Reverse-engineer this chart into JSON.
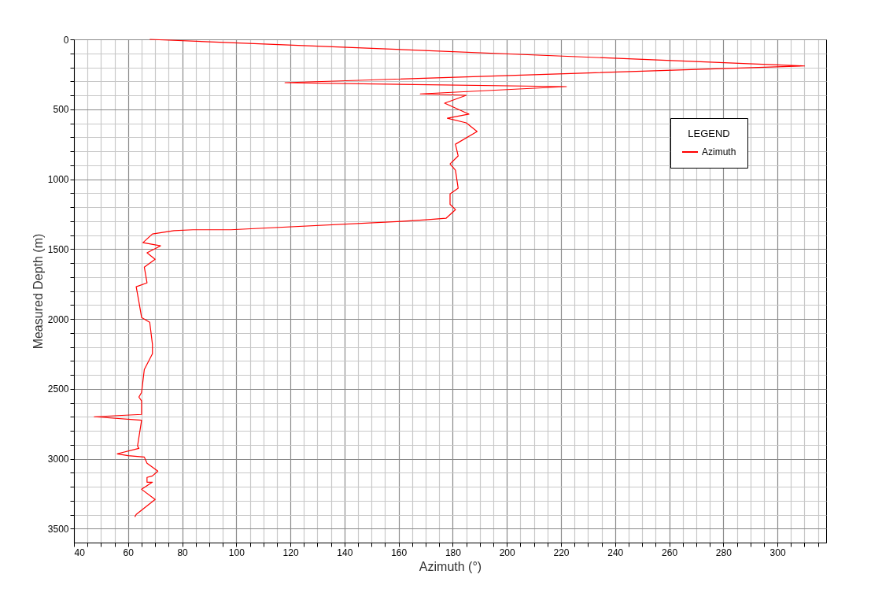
{
  "chart_data": {
    "type": "line",
    "xlabel": "Azimuth (°)",
    "ylabel": "Measured Depth (m)",
    "legend_title": "LEGEND",
    "legend": "top right",
    "grid": true,
    "xlim": [
      40,
      318
    ],
    "ylim": [
      3600,
      0
    ],
    "xticks": [
      40,
      {
        "value": 45,
        "label": null
      },
      {
        "value": 50,
        "label": null
      },
      {
        "value": 55,
        "label": null
      },
      60,
      {
        "value": 65,
        "label": null
      },
      {
        "value": 70,
        "label": null
      },
      {
        "value": 75,
        "label": null
      },
      80,
      {
        "value": 85,
        "label": null
      },
      {
        "value": 90,
        "label": null
      },
      {
        "value": 95,
        "label": null
      },
      100,
      {
        "value": 105,
        "label": null
      },
      {
        "value": 110,
        "label": null
      },
      {
        "value": 115,
        "label": null
      },
      120,
      {
        "value": 125,
        "label": null
      },
      {
        "value": 130,
        "label": null
      },
      {
        "value": 135,
        "label": null
      },
      140,
      {
        "value": 145,
        "label": null
      },
      {
        "value": 150,
        "label": null
      },
      {
        "value": 155,
        "label": null
      },
      160,
      {
        "value": 165,
        "label": null
      },
      {
        "value": 170,
        "label": null
      },
      {
        "value": 175,
        "label": null
      },
      180,
      {
        "value": 185,
        "label": null
      },
      {
        "value": 190,
        "label": null
      },
      {
        "value": 195,
        "label": null
      },
      200,
      {
        "value": 205,
        "label": null
      },
      {
        "value": 210,
        "label": null
      },
      {
        "value": 215,
        "label": null
      },
      220,
      {
        "value": 225,
        "label": null
      },
      {
        "value": 230,
        "label": null
      },
      {
        "value": 235,
        "label": null
      },
      240,
      {
        "value": 245,
        "label": null
      },
      {
        "value": 250,
        "label": null
      },
      {
        "value": 255,
        "label": null
      },
      260,
      {
        "value": 265,
        "label": null
      },
      {
        "value": 270,
        "label": null
      },
      {
        "value": 275,
        "label": null
      },
      280,
      {
        "value": 285,
        "label": null
      },
      {
        "value": 290,
        "label": null
      },
      {
        "value": 295,
        "label": null
      },
      300,
      {
        "value": 305,
        "label": null
      },
      {
        "value": 310,
        "label": null
      },
      {
        "value": 315,
        "label": null
      }
    ],
    "yticks": [
      0,
      {
        "value": 100,
        "label": null
      },
      {
        "value": 200,
        "label": null
      },
      {
        "value": 300,
        "label": null
      },
      {
        "value": 400,
        "label": null
      },
      500,
      {
        "value": 600,
        "label": null
      },
      {
        "value": 700,
        "label": null
      },
      {
        "value": 800,
        "label": null
      },
      {
        "value": 900,
        "label": null
      },
      1000,
      {
        "value": 1100,
        "label": null
      },
      {
        "value": 1200,
        "label": null
      },
      {
        "value": 1300,
        "label": null
      },
      {
        "value": 1400,
        "label": null
      },
      1500,
      {
        "value": 1600,
        "label": null
      },
      {
        "value": 1700,
        "label": null
      },
      {
        "value": 1800,
        "label": null
      },
      {
        "value": 1900,
        "label": null
      },
      2000,
      {
        "value": 2100,
        "label": null
      },
      {
        "value": 2200,
        "label": null
      },
      {
        "value": 2300,
        "label": null
      },
      {
        "value": 2400,
        "label": null
      },
      2500,
      {
        "value": 2600,
        "label": null
      },
      {
        "value": 2700,
        "label": null
      },
      {
        "value": 2800,
        "label": null
      },
      {
        "value": 2900,
        "label": null
      },
      3000,
      {
        "value": 3100,
        "label": null
      },
      {
        "value": 3200,
        "label": null
      },
      {
        "value": 3300,
        "label": null
      },
      {
        "value": 3400,
        "label": null
      },
      3500
    ],
    "series": [
      {
        "name": "Azimuth",
        "color": "#ff0000",
        "x": [
          68,
          310,
          118,
          222,
          168,
          185,
          177,
          186,
          178,
          185,
          189,
          181,
          182,
          179,
          181,
          182,
          179,
          179,
          181,
          177.5,
          170,
          161,
          98,
          84,
          77,
          69,
          65.5,
          72,
          67,
          70,
          66,
          67,
          63,
          64,
          65,
          68,
          69,
          69,
          66,
          65,
          64,
          65,
          65,
          47.5,
          65,
          63.5,
          64,
          56,
          60,
          66,
          67,
          71,
          69,
          67,
          67,
          69,
          65,
          70,
          63,
          62.5
        ],
        "values": [
          0,
          190,
          310,
          338,
          390,
          400,
          456,
          535,
          564,
          597,
          659,
          750,
          834,
          891,
          936,
          1065,
          1105,
          1180,
          1218,
          1280,
          1291,
          1302,
          1362,
          1362,
          1368,
          1392,
          1454,
          1477,
          1527,
          1573,
          1629,
          1742,
          1770,
          1877,
          1990,
          2024,
          2181,
          2249,
          2362,
          2525,
          2559,
          2587,
          2683,
          2700,
          2725,
          2909,
          2926,
          2965,
          2978,
          2988,
          3032,
          3089,
          3123,
          3134,
          3168,
          3168,
          3219,
          3292,
          3399,
          3416
        ]
      }
    ]
  }
}
